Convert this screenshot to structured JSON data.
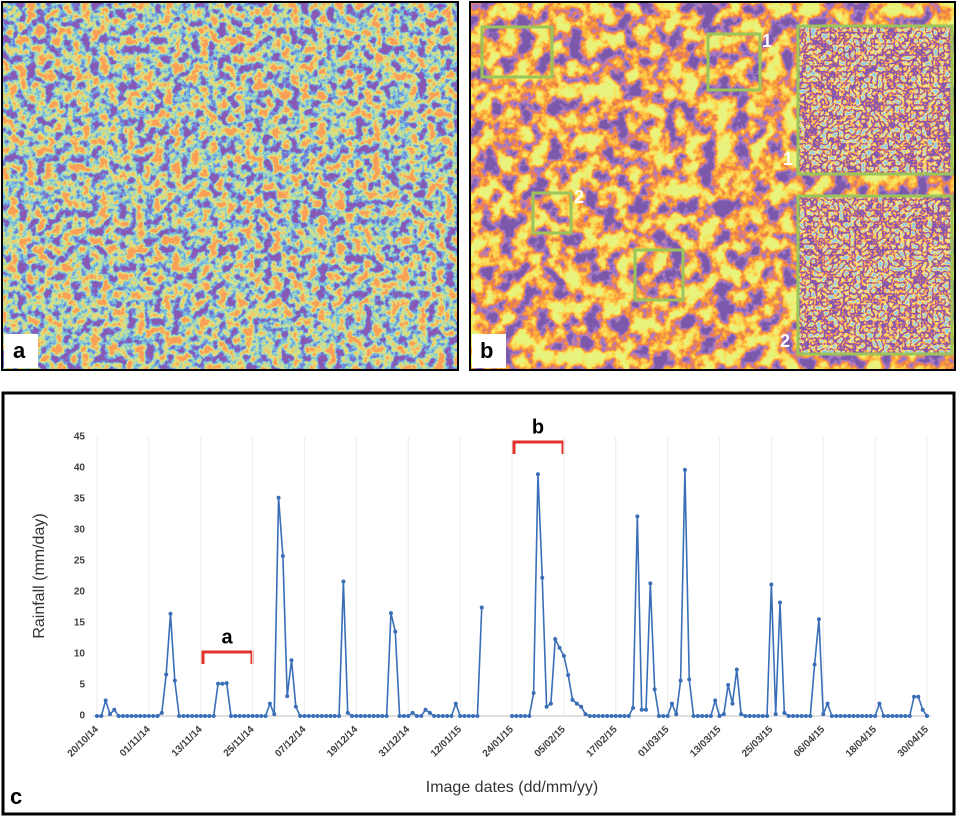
{
  "images": [
    {
      "label": "a"
    },
    {
      "label": "b",
      "box_labels": [
        "1",
        "2"
      ],
      "inset_labels": [
        "1",
        "2"
      ]
    }
  ],
  "chart_data": {
    "type": "line",
    "panel_label": "c",
    "y_label": "Rainfall (mm/day)",
    "x_label": "Image dates (dd/mm/yy)",
    "annotations": [
      "a",
      "b"
    ],
    "color": "#3a6fb7",
    "ylim": [
      0,
      45
    ],
    "yticks": [
      0,
      5,
      10,
      15,
      20,
      25,
      30,
      35,
      40,
      45
    ],
    "categories": [
      "20/10/14",
      null,
      null,
      null,
      null,
      null,
      null,
      null,
      null,
      null,
      null,
      null,
      "01/11/14",
      null,
      null,
      null,
      null,
      null,
      null,
      null,
      null,
      null,
      null,
      null,
      "13/11/14",
      null,
      null,
      null,
      null,
      null,
      null,
      null,
      null,
      null,
      null,
      null,
      "25/11/14",
      null,
      null,
      null,
      null,
      null,
      null,
      null,
      null,
      null,
      null,
      null,
      "07/12/14",
      null,
      null,
      null,
      null,
      null,
      null,
      null,
      null,
      null,
      null,
      null,
      "19/12/14",
      null,
      null,
      null,
      null,
      null,
      null,
      null,
      null,
      null,
      null,
      null,
      "31/12/14",
      null,
      null,
      null,
      null,
      null,
      null,
      null,
      null,
      null,
      null,
      null,
      "12/01/15",
      null,
      null,
      null,
      null,
      null,
      null,
      null,
      null,
      null,
      null,
      null,
      "24/01/15",
      null,
      null,
      null,
      null,
      null,
      null,
      null,
      null,
      null,
      null,
      null,
      "05/02/15",
      null,
      null,
      null,
      null,
      null,
      null,
      null,
      null,
      null,
      null,
      null,
      "17/02/15",
      null,
      null,
      null,
      null,
      null,
      null,
      null,
      null,
      null,
      null,
      null,
      "01/03/15",
      null,
      null,
      null,
      null,
      null,
      null,
      null,
      null,
      null,
      null,
      null,
      "13/03/15",
      null,
      null,
      null,
      null,
      null,
      null,
      null,
      null,
      null,
      null,
      null,
      "25/03/15",
      null,
      null,
      null,
      null,
      null,
      null,
      null,
      null,
      null,
      null,
      null,
      "06/04/15",
      null,
      null,
      null,
      null,
      null,
      null,
      null,
      null,
      null,
      null,
      null,
      "18/04/15",
      null,
      null,
      null,
      null,
      null,
      null,
      null,
      null,
      null,
      null,
      null,
      "30/04/15"
    ],
    "values": [
      0,
      0,
      2.5,
      0.3,
      1,
      0,
      0,
      0,
      0,
      0,
      0,
      0,
      0,
      0,
      0,
      0.5,
      6.7,
      16.5,
      5.7,
      0,
      0,
      0,
      0,
      0,
      0,
      0,
      0,
      0,
      5.2,
      5.2,
      5.3,
      0,
      0,
      0,
      0,
      0,
      0,
      0,
      0,
      0,
      2,
      0.3,
      35.2,
      25.8,
      3.2,
      9,
      1.5,
      0,
      0,
      0,
      0,
      0,
      0,
      0,
      0,
      0,
      0,
      21.7,
      0.5,
      0,
      0,
      0,
      0,
      0,
      0,
      0,
      0,
      0,
      16.6,
      13.6,
      0,
      0,
      0,
      0.5,
      0,
      0,
      1,
      0.5,
      0,
      0,
      0,
      0,
      0,
      2,
      0,
      0,
      0,
      0,
      0,
      17.5,
      null,
      null,
      null,
      null,
      null,
      null,
      0,
      0,
      0,
      0,
      0,
      3.7,
      39,
      22.3,
      1.5,
      2,
      12.4,
      11,
      9.7,
      6.6,
      2.6,
      2,
      1.5,
      0.3,
      0,
      0,
      0,
      0,
      0,
      0,
      0,
      0,
      0,
      0,
      1.3,
      32.2,
      1,
      1,
      21.4,
      4.3,
      0,
      0,
      0,
      2,
      0.3,
      5.7,
      39.7,
      5.9,
      0,
      0,
      0,
      0,
      0,
      2.5,
      0,
      0.3,
      5,
      2,
      7.5,
      0.3,
      0,
      0,
      0,
      0,
      0,
      0,
      21.2,
      0.3,
      18.3,
      0.5,
      0,
      0,
      0,
      0,
      0,
      0,
      8.3,
      15.6,
      0.3,
      2,
      0,
      0,
      0,
      0,
      0,
      0,
      0,
      0,
      0,
      0,
      0,
      2,
      0,
      0,
      0,
      0,
      0,
      0,
      0,
      3.1,
      3.1,
      1,
      0
    ]
  }
}
